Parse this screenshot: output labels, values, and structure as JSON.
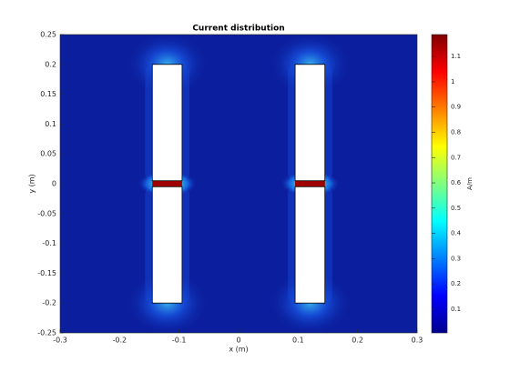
{
  "chart_data": {
    "type": "field",
    "title": "Current distribution",
    "x_label": "x (m)",
    "y_label": "y (m)",
    "xlim": [
      -0.3,
      0.3
    ],
    "xticks": [
      -0.3,
      -0.2,
      -0.1,
      0,
      0.1,
      0.2,
      0.3
    ],
    "ylim": [
      -0.25,
      0.25
    ],
    "yticks": [
      -0.25,
      -0.2,
      -0.15,
      -0.1,
      -0.05,
      0,
      0.05,
      0.1,
      0.15,
      0.2,
      0.25
    ],
    "colorbar": {
      "label": "A/m",
      "clim": [
        0.006,
        1.187
      ],
      "ticks": [
        0.1,
        0.2,
        0.3,
        0.4,
        0.5,
        0.6,
        0.7,
        0.8,
        0.9,
        1,
        1.1
      ]
    },
    "elements": [
      {
        "x": [
          -0.145,
          -0.095
        ],
        "y": [
          0.005,
          0.2
        ]
      },
      {
        "x": [
          -0.145,
          -0.095
        ],
        "y": [
          -0.2,
          -0.005
        ]
      },
      {
        "x": [
          0.095,
          0.145
        ],
        "y": [
          0.005,
          0.2
        ]
      },
      {
        "x": [
          0.095,
          0.145
        ],
        "y": [
          -0.2,
          -0.005
        ]
      }
    ]
  }
}
